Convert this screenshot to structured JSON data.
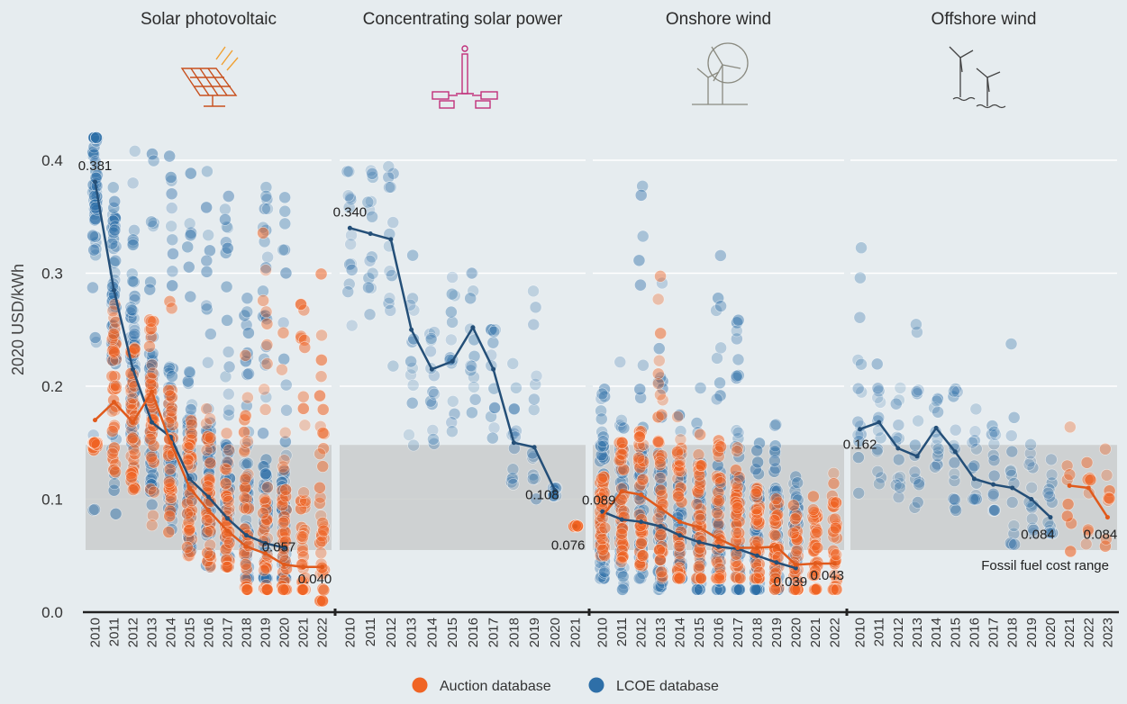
{
  "chart_data": {
    "type": "scatter",
    "ylabel": "2020 USD/kWh",
    "ylim": [
      0,
      0.45
    ],
    "yticks": [
      "0.0",
      "0.1",
      "0.2",
      "0.3",
      "0.4"
    ],
    "fossil_range": [
      0.055,
      0.148
    ],
    "fossil_label": "Fossil fuel cost range",
    "legend": [
      {
        "name": "Auction database",
        "color": "#f06424"
      },
      {
        "name": "LCOE database",
        "color": "#2e6fa8"
      }
    ],
    "colors": {
      "auction": "#f06424",
      "lcoe": "#2e6fa8",
      "auction_line": "#e05a1c",
      "lcoe_line": "#244f78"
    },
    "panels": [
      {
        "title": "Solar photovoltaic",
        "icon": "solar-panel-icon",
        "years": [
          "2010",
          "2011",
          "2012",
          "2013",
          "2014",
          "2015",
          "2016",
          "2017",
          "2018",
          "2019",
          "2020",
          "2021",
          "2022"
        ],
        "lcoe_avg": [
          0.381,
          0.285,
          0.215,
          0.168,
          0.155,
          0.118,
          0.102,
          0.083,
          0.068,
          0.061,
          0.057,
          null,
          null
        ],
        "auction_avg": [
          0.17,
          0.186,
          0.168,
          0.195,
          0.15,
          0.11,
          0.09,
          0.072,
          0.058,
          0.052,
          0.042,
          0.04,
          0.04
        ],
        "lcoe_spread": [
          [
            0.08,
            0.42
          ],
          [
            0.08,
            0.42
          ],
          [
            0.07,
            0.42
          ],
          [
            0.06,
            0.42
          ],
          [
            0.06,
            0.41
          ],
          [
            0.05,
            0.4
          ],
          [
            0.04,
            0.41
          ],
          [
            0.04,
            0.37
          ],
          [
            0.03,
            0.29
          ],
          [
            0.03,
            0.39
          ],
          [
            0.03,
            0.4
          ],
          null,
          null
        ],
        "auction_spread": [
          [
            0.14,
            0.15
          ],
          [
            0.12,
            0.29
          ],
          [
            0.1,
            0.26
          ],
          [
            0.07,
            0.26
          ],
          [
            0.06,
            0.29
          ],
          [
            0.05,
            0.18
          ],
          [
            0.04,
            0.18
          ],
          [
            0.04,
            0.16
          ],
          [
            0.02,
            0.24
          ],
          [
            0.02,
            0.37
          ],
          [
            0.02,
            0.32
          ],
          [
            0.02,
            0.32
          ],
          [
            0.01,
            0.31
          ]
        ],
        "labels": [
          {
            "value": "0.381",
            "series": "lcoe",
            "index": 0
          },
          {
            "value": "0.057",
            "series": "lcoe",
            "index": 10
          },
          {
            "value": "0.040",
            "series": "auction",
            "index": 12
          }
        ]
      },
      {
        "title": "Concentrating solar power",
        "icon": "csp-tower-icon",
        "years": [
          "2010",
          "2011",
          "2012",
          "2013",
          "2014",
          "2015",
          "2016",
          "2017",
          "2018",
          "2019",
          "2020",
          "2021"
        ],
        "lcoe_avg": [
          0.34,
          0.335,
          0.33,
          0.25,
          0.215,
          0.222,
          0.252,
          0.215,
          0.15,
          0.146,
          0.108,
          null
        ],
        "auction_avg": [
          null,
          null,
          null,
          null,
          null,
          null,
          null,
          null,
          null,
          null,
          null,
          0.076
        ],
        "lcoe_spread": [
          [
            0.25,
            0.39
          ],
          [
            0.22,
            0.4
          ],
          [
            0.19,
            0.43
          ],
          [
            0.12,
            0.35
          ],
          [
            0.12,
            0.28
          ],
          [
            0.16,
            0.3
          ],
          [
            0.17,
            0.3
          ],
          [
            0.13,
            0.25
          ],
          [
            0.08,
            0.24
          ],
          [
            0.1,
            0.39
          ],
          [
            0.1,
            0.11
          ],
          null
        ],
        "auction_spread": [
          null,
          null,
          null,
          null,
          null,
          null,
          null,
          null,
          null,
          null,
          null,
          [
            0.076,
            0.078
          ]
        ],
        "labels": [
          {
            "value": "0.340",
            "series": "lcoe",
            "index": 0
          },
          {
            "value": "0.108",
            "series": "lcoe",
            "index": 10
          },
          {
            "value": "0.076",
            "series": "auction",
            "index": 11
          }
        ]
      },
      {
        "title": "Onshore wind",
        "icon": "wind-turbine-icon",
        "years": [
          "2010",
          "2011",
          "2012",
          "2013",
          "2014",
          "2015",
          "2016",
          "2017",
          "2018",
          "2019",
          "2020",
          "2021",
          "2022"
        ],
        "lcoe_avg": [
          0.089,
          0.082,
          0.08,
          0.076,
          0.068,
          0.062,
          0.058,
          0.056,
          0.05,
          0.044,
          0.039,
          null,
          null
        ],
        "auction_avg": [
          0.085,
          0.107,
          0.104,
          0.092,
          0.08,
          0.075,
          0.065,
          0.057,
          0.057,
          0.058,
          0.042,
          0.043,
          0.043
        ],
        "lcoe_spread": [
          [
            0.03,
            0.2
          ],
          [
            0.02,
            0.23
          ],
          [
            0.03,
            0.38
          ],
          [
            0.02,
            0.3
          ],
          [
            0.03,
            0.18
          ],
          [
            0.02,
            0.2
          ],
          [
            0.02,
            0.32
          ],
          [
            0.02,
            0.26
          ],
          [
            0.02,
            0.17
          ],
          [
            0.02,
            0.17
          ],
          [
            0.02,
            0.12
          ],
          null,
          null
        ],
        "auction_spread": [
          [
            0.05,
            0.12
          ],
          [
            0.04,
            0.15
          ],
          [
            0.04,
            0.16
          ],
          [
            0.03,
            0.3
          ],
          [
            0.03,
            0.18
          ],
          [
            0.03,
            0.17
          ],
          [
            0.03,
            0.16
          ],
          [
            0.03,
            0.16
          ],
          [
            0.03,
            0.13
          ],
          [
            0.02,
            0.12
          ],
          [
            0.02,
            0.1
          ],
          [
            0.02,
            0.11
          ],
          [
            0.02,
            0.13
          ]
        ],
        "labels": [
          {
            "value": "0.089",
            "series": "lcoe",
            "index": 0
          },
          {
            "value": "0.039",
            "series": "lcoe",
            "index": 10
          },
          {
            "value": "0.043",
            "series": "auction",
            "index": 12
          }
        ]
      },
      {
        "title": "Offshore wind",
        "icon": "offshore-wind-icon",
        "years": [
          "2010",
          "2011",
          "2012",
          "2013",
          "2014",
          "2015",
          "2016",
          "2017",
          "2018",
          "2019",
          "2020",
          "2021",
          "2022",
          "2023"
        ],
        "lcoe_avg": [
          0.162,
          0.168,
          0.145,
          0.138,
          0.163,
          0.142,
          0.118,
          0.113,
          0.11,
          0.1,
          0.084,
          null,
          null,
          null
        ],
        "auction_avg": [
          null,
          null,
          null,
          null,
          null,
          null,
          null,
          null,
          null,
          null,
          null,
          0.112,
          0.11,
          0.084
        ],
        "lcoe_spread": [
          [
            0.1,
            0.33
          ],
          [
            0.11,
            0.22
          ],
          [
            0.1,
            0.21
          ],
          [
            0.09,
            0.29
          ],
          [
            0.12,
            0.19
          ],
          [
            0.09,
            0.2
          ],
          [
            0.1,
            0.22
          ],
          [
            0.09,
            0.19
          ],
          [
            0.06,
            0.25
          ],
          [
            0.07,
            0.16
          ],
          [
            0.07,
            0.14
          ],
          null,
          null,
          null
        ],
        "auction_spread": [
          null,
          null,
          null,
          null,
          null,
          null,
          null,
          null,
          null,
          null,
          null,
          [
            0.05,
            0.28
          ],
          [
            0.06,
            0.2
          ],
          [
            0.05,
            0.17
          ]
        ],
        "labels": [
          {
            "value": "0.162",
            "series": "lcoe",
            "index": 0
          },
          {
            "value": "0.084",
            "series": "lcoe",
            "index": 10
          },
          {
            "value": "0.084",
            "series": "auction",
            "index": 13
          }
        ]
      }
    ]
  }
}
